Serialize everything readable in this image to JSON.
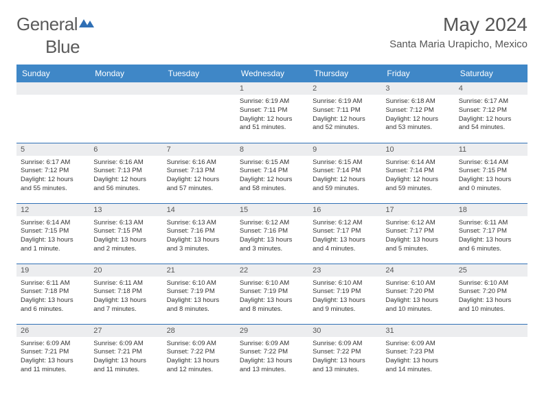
{
  "logo": {
    "text1": "General",
    "text2": "Blue"
  },
  "title": "May 2024",
  "location": "Santa Maria Urapicho, Mexico",
  "colors": {
    "header_bg": "#3f87c7",
    "header_text": "#ffffff",
    "daynum_bg": "#ecedef",
    "border": "#2f6fb5",
    "text": "#333333",
    "title_text": "#555555"
  },
  "weekdays": [
    "Sunday",
    "Monday",
    "Tuesday",
    "Wednesday",
    "Thursday",
    "Friday",
    "Saturday"
  ],
  "weeks": [
    [
      null,
      null,
      null,
      {
        "n": "1",
        "sunrise": "6:19 AM",
        "sunset": "7:11 PM",
        "daylight": "12 hours and 51 minutes."
      },
      {
        "n": "2",
        "sunrise": "6:19 AM",
        "sunset": "7:11 PM",
        "daylight": "12 hours and 52 minutes."
      },
      {
        "n": "3",
        "sunrise": "6:18 AM",
        "sunset": "7:12 PM",
        "daylight": "12 hours and 53 minutes."
      },
      {
        "n": "4",
        "sunrise": "6:17 AM",
        "sunset": "7:12 PM",
        "daylight": "12 hours and 54 minutes."
      }
    ],
    [
      {
        "n": "5",
        "sunrise": "6:17 AM",
        "sunset": "7:12 PM",
        "daylight": "12 hours and 55 minutes."
      },
      {
        "n": "6",
        "sunrise": "6:16 AM",
        "sunset": "7:13 PM",
        "daylight": "12 hours and 56 minutes."
      },
      {
        "n": "7",
        "sunrise": "6:16 AM",
        "sunset": "7:13 PM",
        "daylight": "12 hours and 57 minutes."
      },
      {
        "n": "8",
        "sunrise": "6:15 AM",
        "sunset": "7:14 PM",
        "daylight": "12 hours and 58 minutes."
      },
      {
        "n": "9",
        "sunrise": "6:15 AM",
        "sunset": "7:14 PM",
        "daylight": "12 hours and 59 minutes."
      },
      {
        "n": "10",
        "sunrise": "6:14 AM",
        "sunset": "7:14 PM",
        "daylight": "12 hours and 59 minutes."
      },
      {
        "n": "11",
        "sunrise": "6:14 AM",
        "sunset": "7:15 PM",
        "daylight": "13 hours and 0 minutes."
      }
    ],
    [
      {
        "n": "12",
        "sunrise": "6:14 AM",
        "sunset": "7:15 PM",
        "daylight": "13 hours and 1 minute."
      },
      {
        "n": "13",
        "sunrise": "6:13 AM",
        "sunset": "7:15 PM",
        "daylight": "13 hours and 2 minutes."
      },
      {
        "n": "14",
        "sunrise": "6:13 AM",
        "sunset": "7:16 PM",
        "daylight": "13 hours and 3 minutes."
      },
      {
        "n": "15",
        "sunrise": "6:12 AM",
        "sunset": "7:16 PM",
        "daylight": "13 hours and 3 minutes."
      },
      {
        "n": "16",
        "sunrise": "6:12 AM",
        "sunset": "7:17 PM",
        "daylight": "13 hours and 4 minutes."
      },
      {
        "n": "17",
        "sunrise": "6:12 AM",
        "sunset": "7:17 PM",
        "daylight": "13 hours and 5 minutes."
      },
      {
        "n": "18",
        "sunrise": "6:11 AM",
        "sunset": "7:17 PM",
        "daylight": "13 hours and 6 minutes."
      }
    ],
    [
      {
        "n": "19",
        "sunrise": "6:11 AM",
        "sunset": "7:18 PM",
        "daylight": "13 hours and 6 minutes."
      },
      {
        "n": "20",
        "sunrise": "6:11 AM",
        "sunset": "7:18 PM",
        "daylight": "13 hours and 7 minutes."
      },
      {
        "n": "21",
        "sunrise": "6:10 AM",
        "sunset": "7:19 PM",
        "daylight": "13 hours and 8 minutes."
      },
      {
        "n": "22",
        "sunrise": "6:10 AM",
        "sunset": "7:19 PM",
        "daylight": "13 hours and 8 minutes."
      },
      {
        "n": "23",
        "sunrise": "6:10 AM",
        "sunset": "7:19 PM",
        "daylight": "13 hours and 9 minutes."
      },
      {
        "n": "24",
        "sunrise": "6:10 AM",
        "sunset": "7:20 PM",
        "daylight": "13 hours and 10 minutes."
      },
      {
        "n": "25",
        "sunrise": "6:10 AM",
        "sunset": "7:20 PM",
        "daylight": "13 hours and 10 minutes."
      }
    ],
    [
      {
        "n": "26",
        "sunrise": "6:09 AM",
        "sunset": "7:21 PM",
        "daylight": "13 hours and 11 minutes."
      },
      {
        "n": "27",
        "sunrise": "6:09 AM",
        "sunset": "7:21 PM",
        "daylight": "13 hours and 11 minutes."
      },
      {
        "n": "28",
        "sunrise": "6:09 AM",
        "sunset": "7:22 PM",
        "daylight": "13 hours and 12 minutes."
      },
      {
        "n": "29",
        "sunrise": "6:09 AM",
        "sunset": "7:22 PM",
        "daylight": "13 hours and 13 minutes."
      },
      {
        "n": "30",
        "sunrise": "6:09 AM",
        "sunset": "7:22 PM",
        "daylight": "13 hours and 13 minutes."
      },
      {
        "n": "31",
        "sunrise": "6:09 AM",
        "sunset": "7:23 PM",
        "daylight": "13 hours and 14 minutes."
      },
      null
    ]
  ],
  "labels": {
    "sunrise": "Sunrise:",
    "sunset": "Sunset:",
    "daylight": "Daylight:"
  }
}
